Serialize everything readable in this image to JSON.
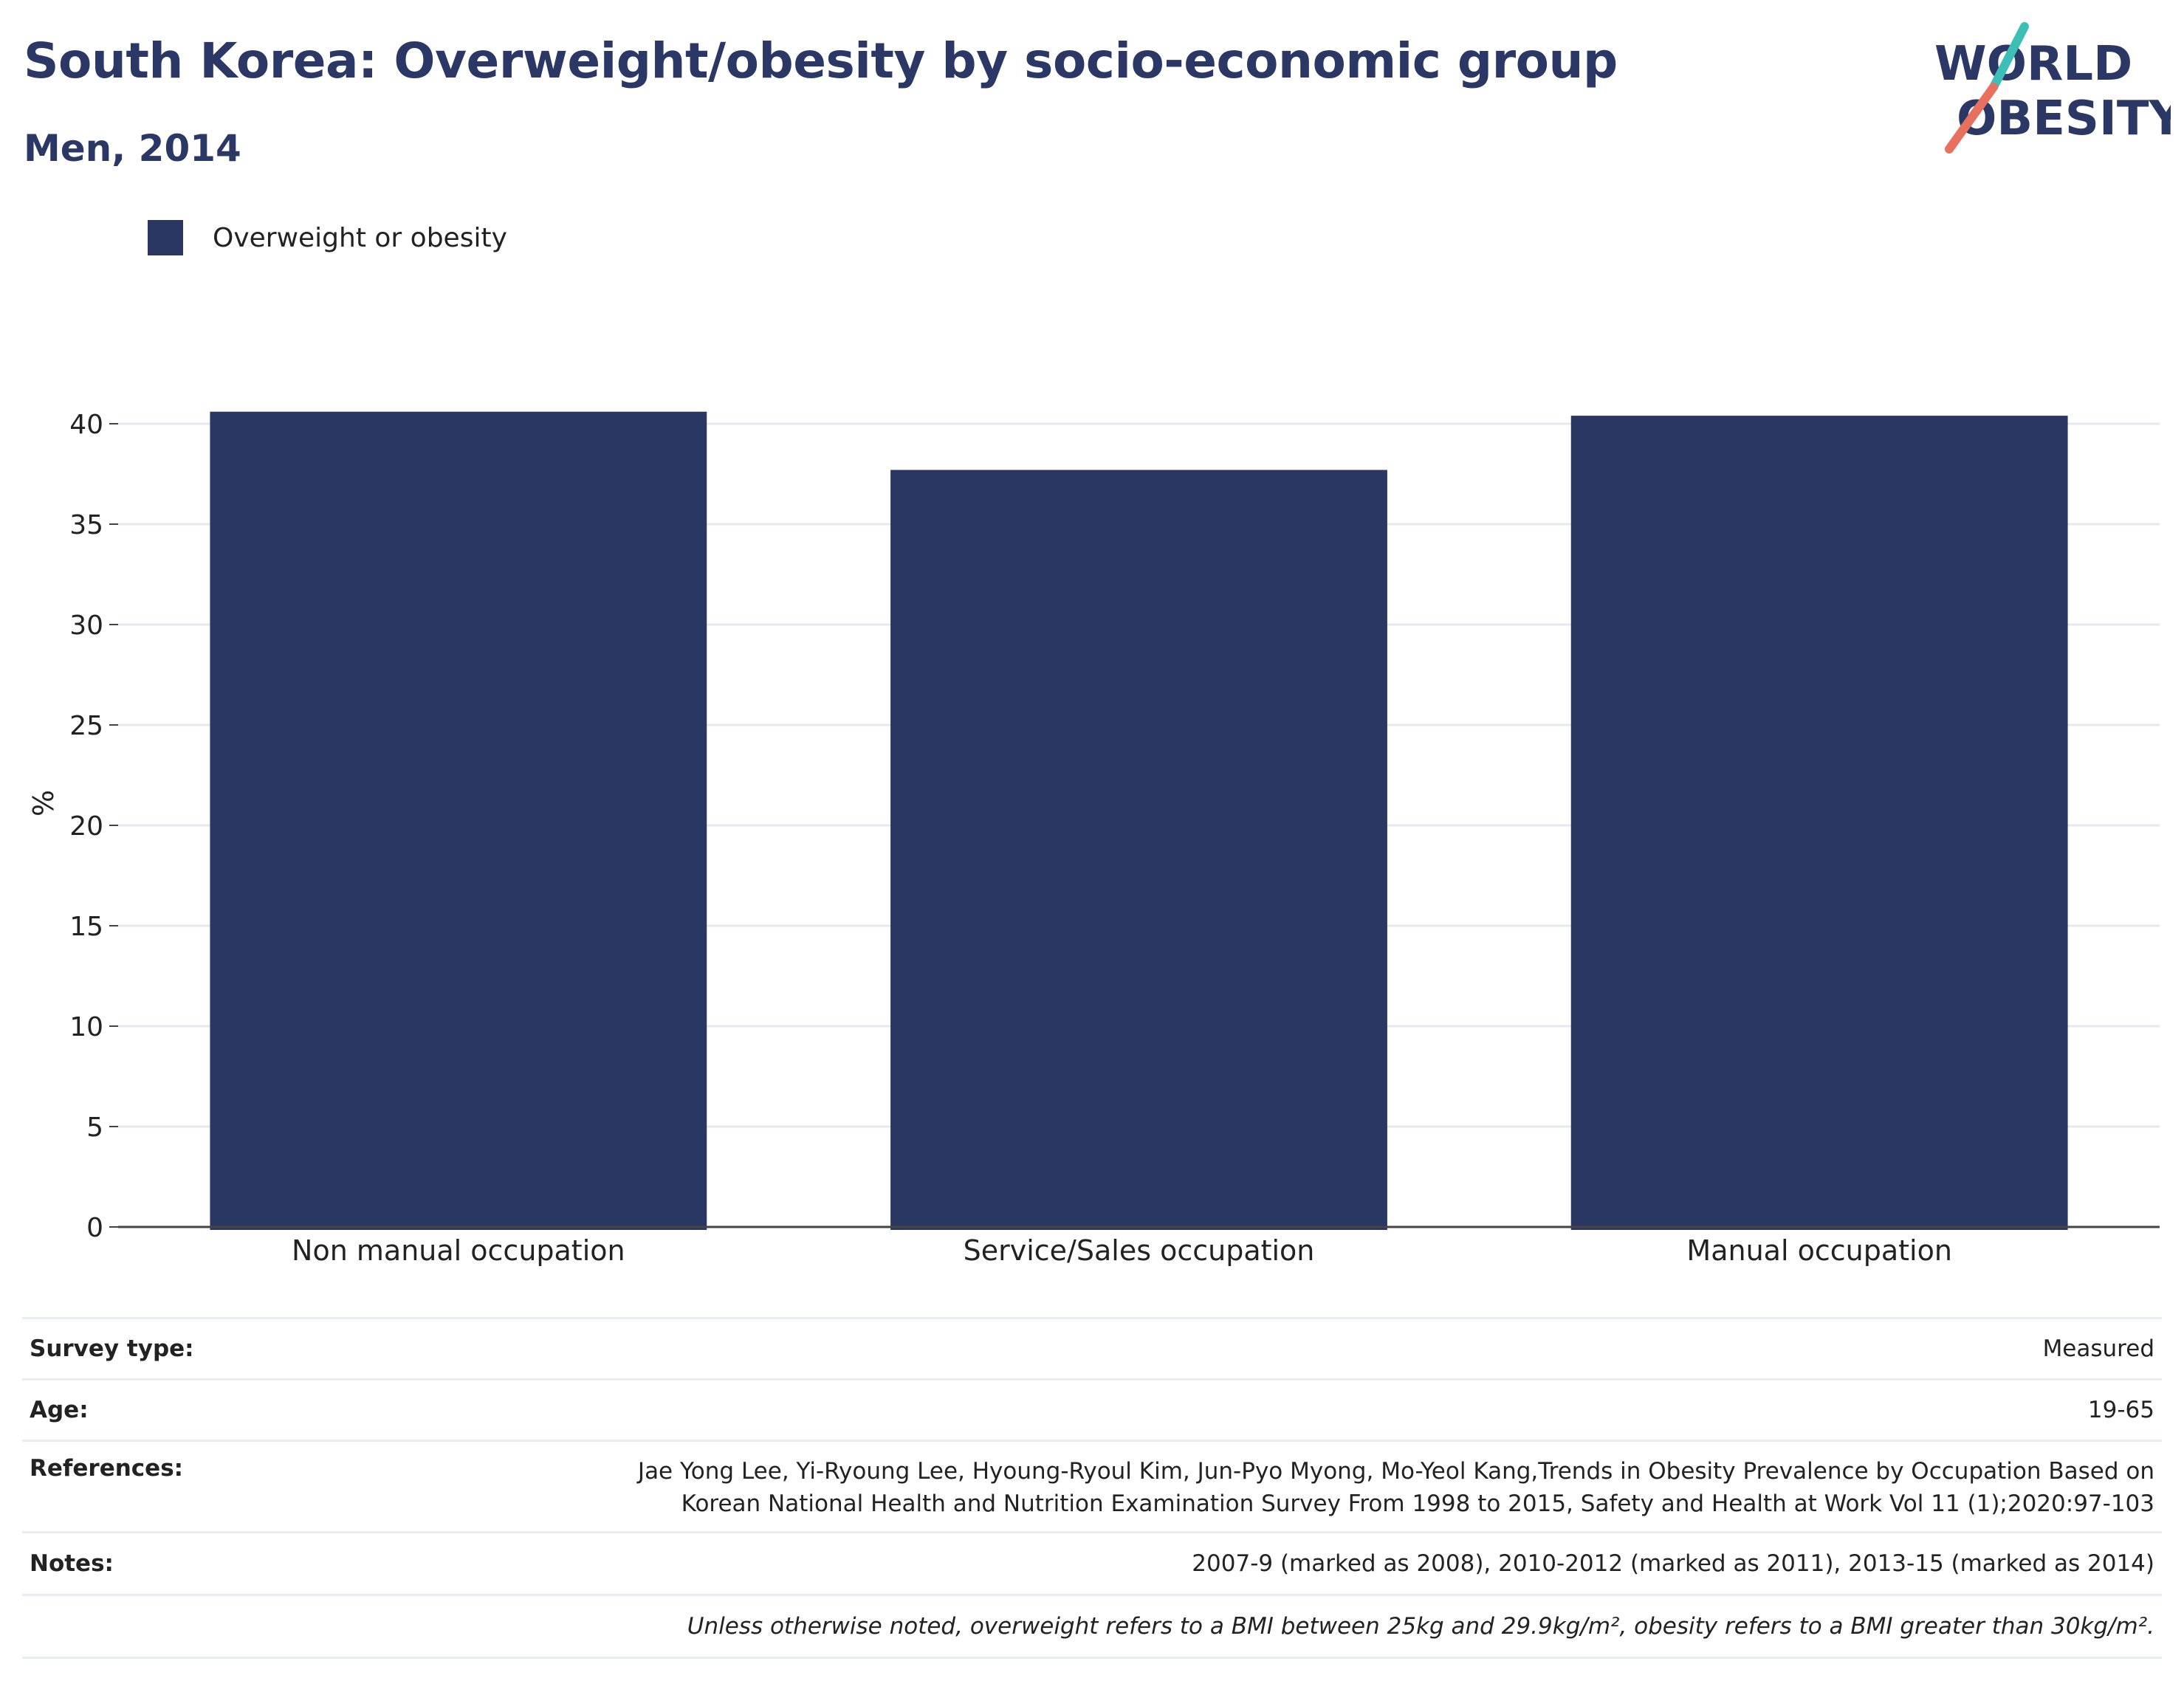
{
  "header": {
    "title": "South Korea: Overweight/obesity by socio-economic group",
    "subtitle": "Men, 2014"
  },
  "logo": {
    "line1": "WORLD",
    "line2": "OBESITY",
    "accent_teal": "#3dbfb8",
    "accent_coral": "#e8705e",
    "text_color": "#2b3764"
  },
  "legend": {
    "label": "Overweight or obesity",
    "color": "#2b3763"
  },
  "chart_data": {
    "type": "bar",
    "categories": [
      "Non manual occupation",
      "Service/Sales occupation",
      "Manual occupation"
    ],
    "series": [
      {
        "name": "Overweight or obesity",
        "values": [
          40.6,
          37.7,
          40.4
        ],
        "color": "#2b3763"
      }
    ],
    "ylabel": "%",
    "ylim": [
      0,
      45
    ],
    "yticks": [
      0,
      5,
      10,
      15,
      20,
      25,
      30,
      35,
      40
    ],
    "grid": true,
    "legend_position": "top-left"
  },
  "info": {
    "rows": [
      {
        "key": "Survey type:",
        "value": "Measured"
      },
      {
        "key": "Age:",
        "value": "19-65"
      },
      {
        "key": "References:",
        "value": "Jae Yong Lee, Yi-Ryoung Lee, Hyoung-Ryoul Kim, Jun-Pyo Myong, Mo-Yeol Kang,Trends in Obesity Prevalence by Occupation Based on Korean National Health and Nutrition Examination Survey From 1998 to 2015, Safety and Health at Work Vol 11 (1);2020:97-103"
      },
      {
        "key": "Notes:",
        "value": "2007-9 (marked as 2008), 2010-2012 (marked as 2011), 2013-15 (marked as 2014)"
      },
      {
        "key": "",
        "value": "Unless otherwise noted, overweight refers to a BMI between 25kg and 29.9kg/m², obesity refers to a BMI greater than 30kg/m²."
      }
    ]
  }
}
